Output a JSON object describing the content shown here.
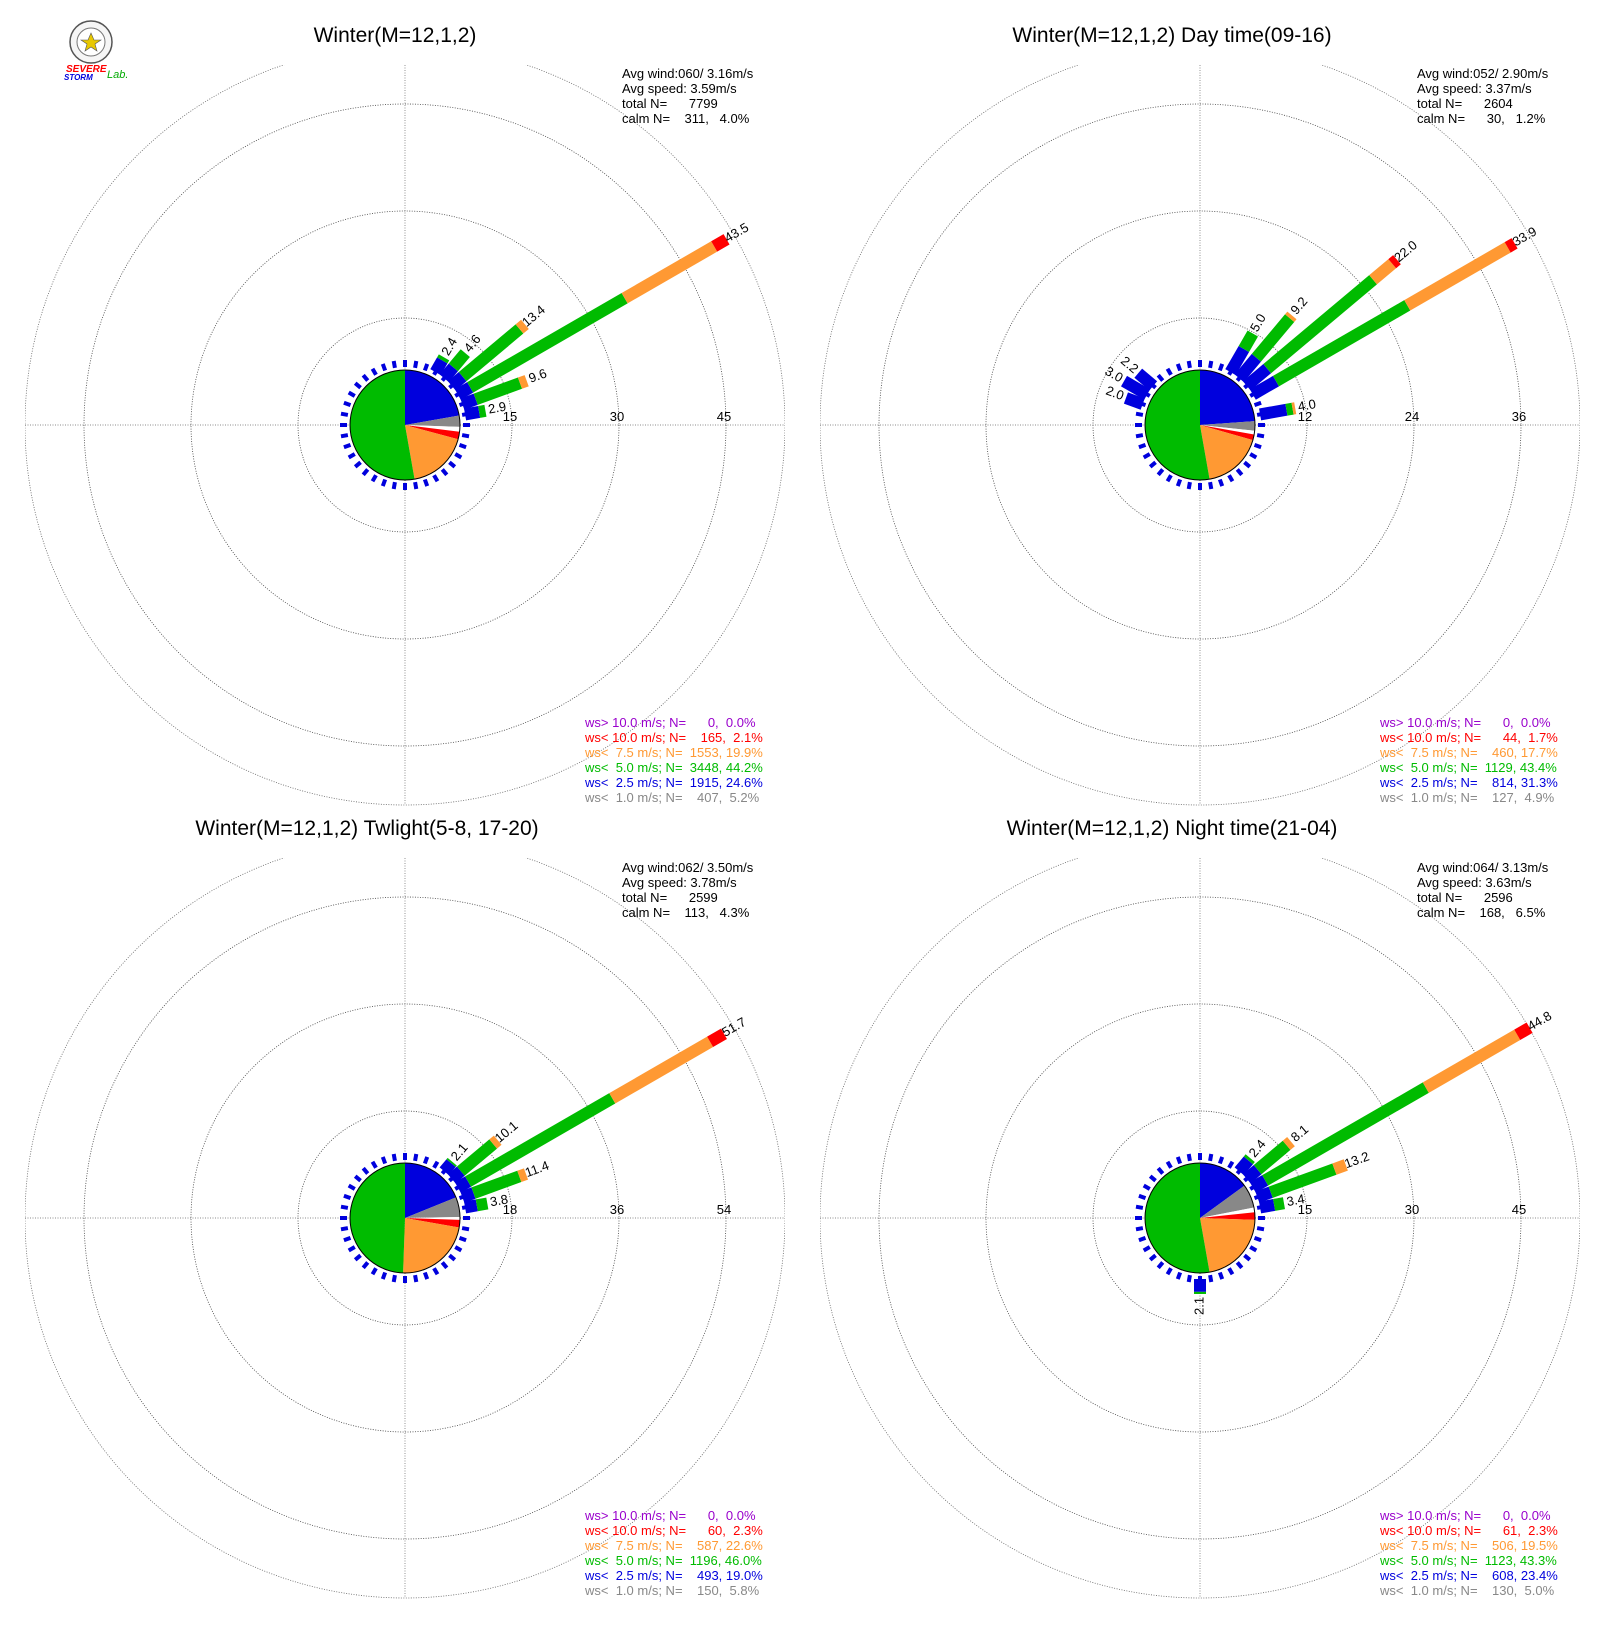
{
  "logo": {
    "line1": "SEVERE",
    "line2": "STORM",
    "line3": "Lab."
  },
  "chart_data": [
    {
      "type": "windrose",
      "title": "Winter(M=12,1,2)",
      "rings": [
        15,
        30,
        45
      ],
      "info": [
        "Avg wind:060/ 3.16m/s",
        "Avg speed: 3.59m/s",
        "total N=      7799",
        "calm N=    311,   4.0%"
      ],
      "legend": [
        {
          "text": "ws> 10.0 m/s; N=      0,  0.0%",
          "color": "#9900cc"
        },
        {
          "text": "ws< 10.0 m/s; N=    165,  2.1%",
          "color": "#ff0000"
        },
        {
          "text": "ws<  7.5 m/s; N=  1553, 19.9%",
          "color": "#ff9933"
        },
        {
          "text": "ws<  5.0 m/s; N=  3448, 44.2%",
          "color": "#00bb00"
        },
        {
          "text": "ws<  2.5 m/s; N=  1915, 24.6%",
          "color": "#0000dd"
        },
        {
          "text": "ws<  1.0 m/s; N=    407,  5.2%",
          "color": "#888888"
        }
      ],
      "pie": [
        {
          "start": 0,
          "end": 80,
          "color": "#0000dd"
        },
        {
          "start": 80,
          "end": 92,
          "color": "#888888"
        },
        {
          "start": 92,
          "end": 97,
          "color": "#ffffff"
        },
        {
          "start": 97,
          "end": 105,
          "color": "#ff0000"
        },
        {
          "start": 105,
          "end": 170,
          "color": "#ff9933"
        },
        {
          "start": 170,
          "end": 360,
          "color": "#00bb00"
        }
      ],
      "petals": [
        {
          "dir": 30,
          "total": 2.4,
          "segs": [
            {
              "to": 1.9,
              "color": "#0000dd"
            },
            {
              "to": 2.4,
              "color": "#00bb00"
            }
          ],
          "label": "2.4"
        },
        {
          "dir": 40,
          "total": 4.6,
          "segs": [
            {
              "to": 2.0,
              "color": "#0000dd"
            },
            {
              "to": 4.6,
              "color": "#00bb00"
            }
          ],
          "label": "4.6"
        },
        {
          "dir": 50,
          "total": 13.4,
          "segs": [
            {
              "to": 2.0,
              "color": "#0000dd"
            },
            {
              "to": 12.4,
              "color": "#00bb00"
            },
            {
              "to": 13.4,
              "color": "#ff9933"
            }
          ],
          "label": "13.4"
        },
        {
          "dir": 60,
          "total": 43.5,
          "segs": [
            {
              "to": 2.0,
              "color": "#0000dd"
            },
            {
              "to": 27.0,
              "color": "#00bb00"
            },
            {
              "to": 41.5,
              "color": "#ff9933"
            },
            {
              "to": 43.5,
              "color": "#ff0000"
            }
          ],
          "label": "43.5"
        },
        {
          "dir": 70,
          "total": 9.6,
          "segs": [
            {
              "to": 2.0,
              "color": "#0000dd"
            },
            {
              "to": 8.6,
              "color": "#00bb00"
            },
            {
              "to": 9.6,
              "color": "#ff9933"
            }
          ],
          "label": "9.6"
        },
        {
          "dir": 80,
          "total": 2.9,
          "segs": [
            {
              "to": 2.0,
              "color": "#0000dd"
            },
            {
              "to": 2.9,
              "color": "#00bb00"
            }
          ],
          "label": "2.9"
        }
      ]
    },
    {
      "type": "windrose",
      "title": "Winter(M=12,1,2) Day time(09-16)",
      "rings": [
        12,
        24,
        36
      ],
      "info": [
        "Avg wind:052/ 2.90m/s",
        "Avg speed: 3.37m/s",
        "total N=      2604",
        "calm N=      30,   1.2%"
      ],
      "legend": [
        {
          "text": "ws> 10.0 m/s; N=      0,  0.0%",
          "color": "#9900cc"
        },
        {
          "text": "ws< 10.0 m/s; N=      44,  1.7%",
          "color": "#ff0000"
        },
        {
          "text": "ws<  7.5 m/s; N=    460, 17.7%",
          "color": "#ff9933"
        },
        {
          "text": "ws<  5.0 m/s; N=  1129, 43.4%",
          "color": "#00bb00"
        },
        {
          "text": "ws<  2.5 m/s; N=    814, 31.3%",
          "color": "#0000dd"
        },
        {
          "text": "ws<  1.0 m/s; N=    127,  4.9%",
          "color": "#888888"
        }
      ],
      "pie": [
        {
          "start": 0,
          "end": 86,
          "color": "#0000dd"
        },
        {
          "start": 86,
          "end": 96,
          "color": "#888888"
        },
        {
          "start": 96,
          "end": 100,
          "color": "#ffffff"
        },
        {
          "start": 100,
          "end": 106,
          "color": "#ff0000"
        },
        {
          "start": 106,
          "end": 170,
          "color": "#ff9933"
        },
        {
          "start": 170,
          "end": 360,
          "color": "#00bb00"
        }
      ],
      "petals": [
        {
          "dir": 290,
          "total": 2.0,
          "segs": [
            {
              "to": 2.0,
              "color": "#0000dd"
            }
          ],
          "label": "2.0"
        },
        {
          "dir": 300,
          "total": 3.0,
          "segs": [
            {
              "to": 3.0,
              "color": "#0000dd"
            }
          ],
          "label": "3.0"
        },
        {
          "dir": 310,
          "total": 2.2,
          "segs": [
            {
              "to": 2.2,
              "color": "#0000dd"
            }
          ],
          "label": "2.2"
        },
        {
          "dir": 30,
          "total": 5.0,
          "segs": [
            {
              "to": 3.0,
              "color": "#0000dd"
            },
            {
              "to": 5.0,
              "color": "#00bb00"
            }
          ],
          "label": "5.0"
        },
        {
          "dir": 40,
          "total": 9.2,
          "segs": [
            {
              "to": 3.0,
              "color": "#0000dd"
            },
            {
              "to": 8.8,
              "color": "#00bb00"
            },
            {
              "to": 9.2,
              "color": "#ff9933"
            }
          ],
          "label": "9.2"
        },
        {
          "dir": 50,
          "total": 22.0,
          "segs": [
            {
              "to": 3.0,
              "color": "#0000dd"
            },
            {
              "to": 18.5,
              "color": "#00bb00"
            },
            {
              "to": 21.3,
              "color": "#ff9933"
            },
            {
              "to": 22.0,
              "color": "#ff0000"
            }
          ],
          "label": "22.0"
        },
        {
          "dir": 60,
          "total": 33.9,
          "segs": [
            {
              "to": 3.0,
              "color": "#0000dd"
            },
            {
              "to": 20.0,
              "color": "#00bb00"
            },
            {
              "to": 33.0,
              "color": "#ff9933"
            },
            {
              "to": 33.9,
              "color": "#ff0000"
            }
          ],
          "label": "33.9"
        },
        {
          "dir": 80,
          "total": 4.0,
          "segs": [
            {
              "to": 3.0,
              "color": "#0000dd"
            },
            {
              "to": 3.7,
              "color": "#00bb00"
            },
            {
              "to": 4.0,
              "color": "#ff9933"
            }
          ],
          "label": "4.0"
        }
      ]
    },
    {
      "type": "windrose",
      "title": "Winter(M=12,1,2) Twlight(5-8, 17-20)",
      "rings": [
        18,
        36,
        54
      ],
      "info": [
        "Avg wind:062/ 3.50m/s",
        "Avg speed: 3.78m/s",
        "total N=      2599",
        "calm N=    113,   4.3%"
      ],
      "legend": [
        {
          "text": "ws> 10.0 m/s; N=      0,  0.0%",
          "color": "#9900cc"
        },
        {
          "text": "ws< 10.0 m/s; N=      60,  2.3%",
          "color": "#ff0000"
        },
        {
          "text": "ws<  7.5 m/s; N=    587, 22.6%",
          "color": "#ff9933"
        },
        {
          "text": "ws<  5.0 m/s; N=  1196, 46.0%",
          "color": "#00bb00"
        },
        {
          "text": "ws<  2.5 m/s; N=    493, 19.0%",
          "color": "#0000dd"
        },
        {
          "text": "ws<  1.0 m/s; N=    150,  5.8%",
          "color": "#888888"
        }
      ],
      "pie": [
        {
          "start": 0,
          "end": 68,
          "color": "#0000dd"
        },
        {
          "start": 68,
          "end": 89,
          "color": "#888888"
        },
        {
          "start": 89,
          "end": 92,
          "color": "#ffffff"
        },
        {
          "start": 92,
          "end": 100,
          "color": "#ff0000"
        },
        {
          "start": 100,
          "end": 182,
          "color": "#ff9933"
        },
        {
          "start": 182,
          "end": 360,
          "color": "#00bb00"
        }
      ],
      "petals": [
        {
          "dir": 40,
          "total": 2.1,
          "segs": [
            {
              "to": 1.8,
              "color": "#0000dd"
            },
            {
              "to": 2.1,
              "color": "#00bb00"
            }
          ],
          "label": "2.1"
        },
        {
          "dir": 50,
          "total": 10.1,
          "segs": [
            {
              "to": 2.0,
              "color": "#0000dd"
            },
            {
              "to": 9.1,
              "color": "#00bb00"
            },
            {
              "to": 10.1,
              "color": "#ff9933"
            }
          ],
          "label": "10.1"
        },
        {
          "dir": 60,
          "total": 51.7,
          "segs": [
            {
              "to": 2.0,
              "color": "#0000dd"
            },
            {
              "to": 30.0,
              "color": "#00bb00"
            },
            {
              "to": 49.0,
              "color": "#ff9933"
            },
            {
              "to": 51.7,
              "color": "#ff0000"
            }
          ],
          "label": "51.7"
        },
        {
          "dir": 70,
          "total": 11.4,
          "segs": [
            {
              "to": 2.0,
              "color": "#0000dd"
            },
            {
              "to": 10.2,
              "color": "#00bb00"
            },
            {
              "to": 11.4,
              "color": "#ff9933"
            }
          ],
          "label": "11.4"
        },
        {
          "dir": 80,
          "total": 3.8,
          "segs": [
            {
              "to": 2.0,
              "color": "#0000dd"
            },
            {
              "to": 3.8,
              "color": "#00bb00"
            }
          ],
          "label": "3.8"
        }
      ]
    },
    {
      "type": "windrose",
      "title": "Winter(M=12,1,2) Night time(21-04)",
      "rings": [
        15,
        30,
        45
      ],
      "info": [
        "Avg wind:064/ 3.13m/s",
        "Avg speed: 3.63m/s",
        "total N=      2596",
        "calm N=    168,   6.5%"
      ],
      "legend": [
        {
          "text": "ws> 10.0 m/s; N=      0,  0.0%",
          "color": "#9900cc"
        },
        {
          "text": "ws< 10.0 m/s; N=      61,  2.3%",
          "color": "#ff0000"
        },
        {
          "text": "ws<  7.5 m/s; N=    506, 19.5%",
          "color": "#ff9933"
        },
        {
          "text": "ws<  5.0 m/s; N=  1123, 43.3%",
          "color": "#00bb00"
        },
        {
          "text": "ws<  2.5 m/s; N=    608, 23.4%",
          "color": "#0000dd"
        },
        {
          "text": "ws<  1.0 m/s; N=    130,  5.0%",
          "color": "#888888"
        }
      ],
      "pie": [
        {
          "start": 0,
          "end": 54,
          "color": "#0000dd"
        },
        {
          "start": 54,
          "end": 79,
          "color": "#888888"
        },
        {
          "start": 79,
          "end": 84,
          "color": "#ffffff"
        },
        {
          "start": 84,
          "end": 92,
          "color": "#ff0000"
        },
        {
          "start": 92,
          "end": 170,
          "color": "#ff9933"
        },
        {
          "start": 170,
          "end": 360,
          "color": "#00bb00"
        }
      ],
      "petals": [
        {
          "dir": 40,
          "total": 2.4,
          "segs": [
            {
              "to": 2.0,
              "color": "#0000dd"
            },
            {
              "to": 2.4,
              "color": "#00bb00"
            }
          ],
          "label": "2.4"
        },
        {
          "dir": 50,
          "total": 8.1,
          "segs": [
            {
              "to": 2.0,
              "color": "#0000dd"
            },
            {
              "to": 7.3,
              "color": "#00bb00"
            },
            {
              "to": 8.1,
              "color": "#ff9933"
            }
          ],
          "label": "8.1"
        },
        {
          "dir": 60,
          "total": 44.8,
          "segs": [
            {
              "to": 2.0,
              "color": "#0000dd"
            },
            {
              "to": 28.0,
              "color": "#00bb00"
            },
            {
              "to": 42.8,
              "color": "#ff9933"
            },
            {
              "to": 44.8,
              "color": "#ff0000"
            }
          ],
          "label": "44.8"
        },
        {
          "dir": 70,
          "total": 13.2,
          "segs": [
            {
              "to": 2.0,
              "color": "#0000dd"
            },
            {
              "to": 11.5,
              "color": "#00bb00"
            },
            {
              "to": 13.2,
              "color": "#ff9933"
            }
          ],
          "label": "13.2"
        },
        {
          "dir": 80,
          "total": 3.4,
          "segs": [
            {
              "to": 2.0,
              "color": "#0000dd"
            },
            {
              "to": 3.4,
              "color": "#00bb00"
            }
          ],
          "label": "3.4"
        },
        {
          "dir": 180,
          "total": 2.1,
          "segs": [
            {
              "to": 1.8,
              "color": "#0000dd"
            },
            {
              "to": 2.1,
              "color": "#00bb00"
            }
          ],
          "label": "2.1"
        }
      ]
    }
  ]
}
